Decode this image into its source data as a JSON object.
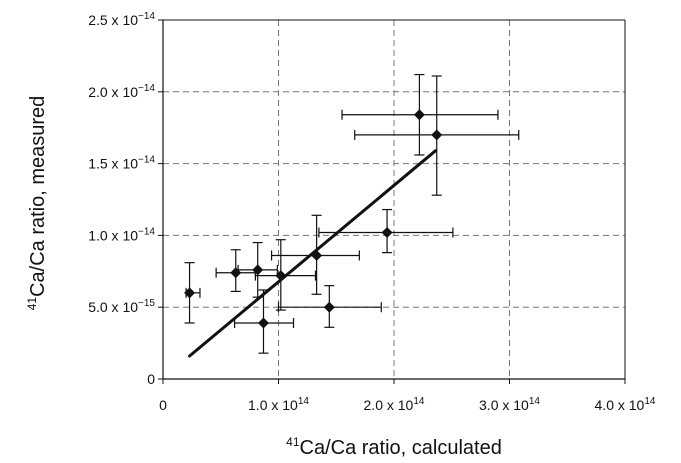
{
  "chart_data": {
    "type": "scatter",
    "title": "",
    "xlabel": {
      "sup": "41",
      "text": "Ca/Ca ratio, calculated"
    },
    "ylabel": {
      "sup": "41",
      "text": "Ca/Ca ratio, measured"
    },
    "xlim": [
      0,
      400000000000000.0
    ],
    "ylim": [
      0,
      2.5e-14
    ],
    "grid": true,
    "legend": "none",
    "colors": {
      "marker": "#111111",
      "grid": "#777777",
      "axis": "#111111",
      "fit_line": "#111111"
    },
    "x_ticks": [
      {
        "value": 0,
        "label": "0"
      },
      {
        "value": 100000000000000.0,
        "label": "1.0 x 10",
        "exp": "14"
      },
      {
        "value": 200000000000000.0,
        "label": "2.0 x 10",
        "exp": "14"
      },
      {
        "value": 300000000000000.0,
        "label": "3.0 x 10",
        "exp": "14"
      },
      {
        "value": 400000000000000.0,
        "label": "4.0 x 10",
        "exp": "14"
      }
    ],
    "y_ticks": [
      {
        "value": 0,
        "label": "0"
      },
      {
        "value": 5e-15,
        "label": "5.0 x 10",
        "exp": "−15"
      },
      {
        "value": 1e-14,
        "label": "1.0 x 10",
        "exp": "−14"
      },
      {
        "value": 1.5e-14,
        "label": "1.5 x 10",
        "exp": "−14"
      },
      {
        "value": 2e-14,
        "label": "2.0 x 10",
        "exp": "−14"
      },
      {
        "value": 2.5e-14,
        "label": "2.5 x 10",
        "exp": "−14"
      }
    ],
    "points": [
      {
        "x": 23000000000000.0,
        "y": 6e-15,
        "xerr": [
          20000000000000.0,
          32000000000000.0
        ],
        "yerr": [
          3.9e-15,
          8.1e-15
        ]
      },
      {
        "x": 63000000000000.0,
        "y": 7.4e-15,
        "xerr": [
          46000000000000.0,
          80000000000000.0
        ],
        "yerr": [
          6.1e-15,
          9e-15
        ]
      },
      {
        "x": 82000000000000.0,
        "y": 7.6e-15,
        "xerr": [
          65000000000000.0,
          99000000000000.0
        ],
        "yerr": [
          5.7e-15,
          9.5e-15
        ]
      },
      {
        "x": 102000000000000.0,
        "y": 7.2e-15,
        "xerr": [
          80000000000000.0,
          132000000000000.0
        ],
        "yerr": [
          4.8e-15,
          9.7e-15
        ]
      },
      {
        "x": 87000000000000.0,
        "y": 3.9e-15,
        "xerr": [
          62000000000000.0,
          113000000000000.0
        ],
        "yerr": [
          1.8e-15,
          6.2e-15
        ]
      },
      {
        "x": 133000000000000.0,
        "y": 8.6e-15,
        "xerr": [
          94000000000000.0,
          170000000000000.0
        ],
        "yerr": [
          5.9e-15,
          1.14e-14
        ]
      },
      {
        "x": 144000000000000.0,
        "y": 5e-15,
        "xerr": [
          100000000000000.0,
          189000000000000.0
        ],
        "yerr": [
          3.6e-15,
          6.5e-15
        ]
      },
      {
        "x": 194000000000000.0,
        "y": 1.02e-14,
        "xerr": [
          135000000000000.0,
          251000000000000.0
        ],
        "yerr": [
          8.8e-15,
          1.18e-14
        ]
      },
      {
        "x": 222000000000000.0,
        "y": 1.84e-14,
        "xerr": [
          155000000000000.0,
          290000000000000.0
        ],
        "yerr": [
          1.56e-14,
          2.12e-14
        ]
      },
      {
        "x": 237000000000000.0,
        "y": 1.7e-14,
        "xerr": [
          166000000000000.0,
          308000000000000.0
        ],
        "yerr": [
          1.28e-14,
          2.11e-14
        ]
      }
    ],
    "fit_line": {
      "x": [
        23000000000000.0,
        236000000000000.0
      ],
      "y": [
        1.6e-15,
        1.59e-14
      ]
    }
  }
}
